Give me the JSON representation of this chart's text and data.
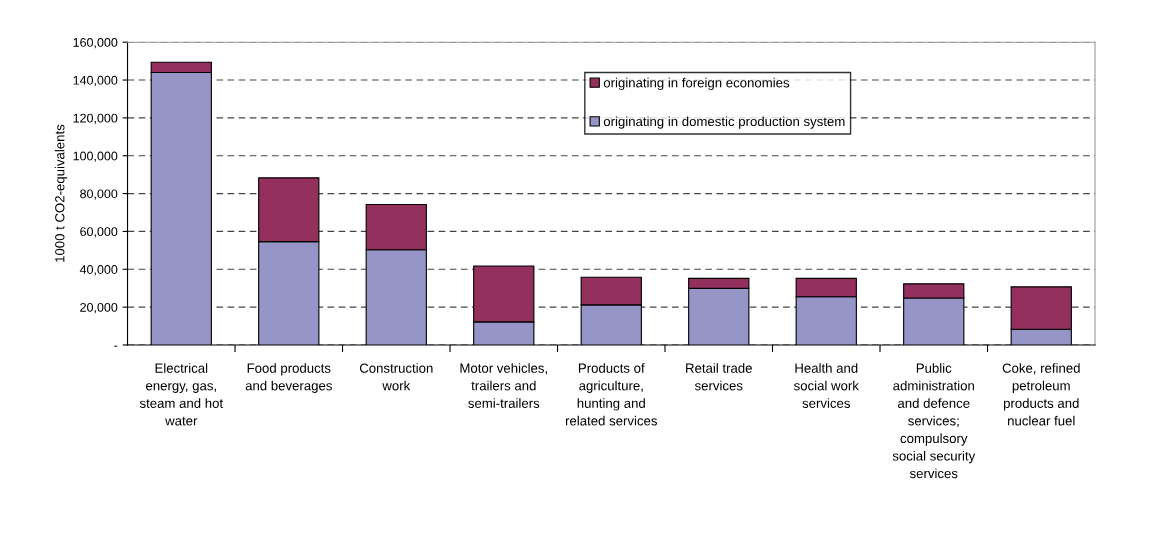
{
  "chart_data": {
    "type": "bar",
    "stacked": true,
    "ylabel": "1000 t CO2-equivalents",
    "categories": [
      "Electrical\nenergy, gas,\nsteam and hot\nwater",
      "Food products\nand beverages",
      "Construction\nwork",
      "Motor vehicles,\ntrailers and\nsemi-trailers",
      "Products of\nagriculture,\nhunting and\nrelated services",
      "Retail trade\nservices",
      "Health and\nsocial work\nservices",
      "Public\nadministration\nand defence\nservices;\ncompulsory\nsocial security\nservices",
      "Coke, refined\npetroleum\nproducts and\nnuclear fuel"
    ],
    "series": [
      {
        "name": "originating in domestic production system",
        "color": "#9595c8",
        "values": [
          144000,
          54600,
          50300,
          12200,
          21200,
          29900,
          25500,
          24800,
          8300
        ]
      },
      {
        "name": "originating in foreign economies",
        "color": "#93305e",
        "values": [
          5400,
          33700,
          23900,
          29500,
          14600,
          5300,
          9700,
          7500,
          22400
        ]
      }
    ],
    "ylim": [
      0,
      160000
    ],
    "yticks": [
      {
        "value": 0,
        "label": "-"
      },
      {
        "value": 20000,
        "label": "20,000"
      },
      {
        "value": 40000,
        "label": "40,000"
      },
      {
        "value": 60000,
        "label": "60,000"
      },
      {
        "value": 80000,
        "label": "80,000"
      },
      {
        "value": 100000,
        "label": "100,000"
      },
      {
        "value": 120000,
        "label": "120,000"
      },
      {
        "value": 140000,
        "label": "140,000"
      },
      {
        "value": 160000,
        "label": "160,000"
      }
    ],
    "grid": "y",
    "legend": "top center"
  }
}
